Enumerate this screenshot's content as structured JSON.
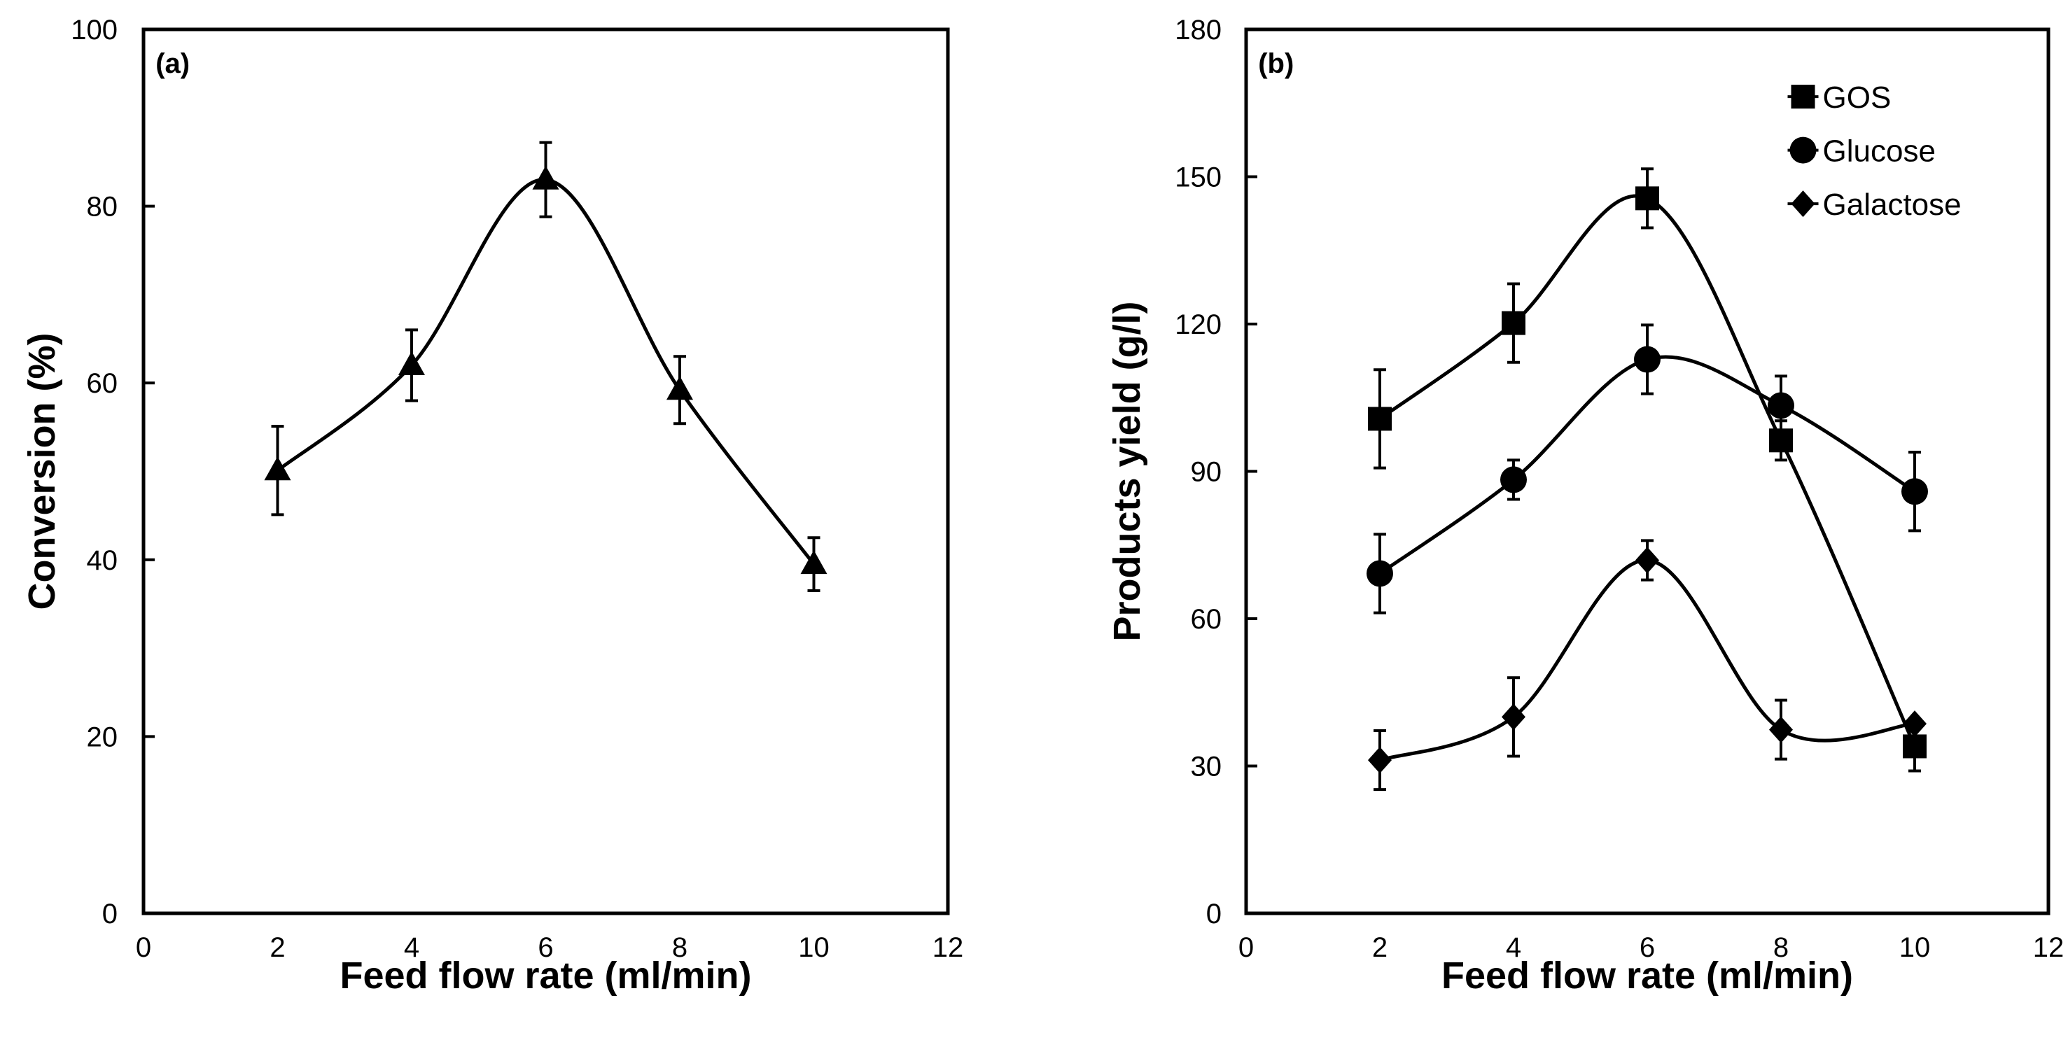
{
  "chart_data": [
    {
      "type": "line",
      "panel_label": "(a)",
      "xlabel": "Feed flow rate (ml/min)",
      "ylabel": "Conversion (%)",
      "xlim": [
        0,
        12
      ],
      "ylim": [
        0,
        100
      ],
      "xticks": [
        0,
        2,
        4,
        6,
        8,
        10,
        12
      ],
      "yticks": [
        0,
        20,
        40,
        60,
        80,
        100
      ],
      "grid": false,
      "x": [
        2,
        4,
        6,
        8,
        10
      ],
      "series": [
        {
          "name": "Conversion",
          "marker": "triangle",
          "values": [
            50.1,
            62.0,
            83.0,
            59.2,
            39.5
          ],
          "errors": [
            5.0,
            4.0,
            4.2,
            3.8,
            3.0
          ]
        }
      ]
    },
    {
      "type": "line",
      "panel_label": "(b)",
      "xlabel": "Feed flow rate (ml/min)",
      "ylabel": "Products yield (g/l)",
      "xlim": [
        0,
        12
      ],
      "ylim": [
        0,
        180
      ],
      "xticks": [
        0,
        2,
        4,
        6,
        8,
        10,
        12
      ],
      "yticks": [
        0,
        30,
        60,
        90,
        120,
        150,
        180
      ],
      "grid": false,
      "legend_position": "top-right",
      "x": [
        2,
        4,
        6,
        8,
        10
      ],
      "series": [
        {
          "name": "GOS",
          "marker": "square",
          "values": [
            100.7,
            120.2,
            145.6,
            96.3,
            34.0
          ],
          "errors": [
            10.0,
            8.0,
            6.0,
            4.0,
            5.0
          ]
        },
        {
          "name": "Glucose",
          "marker": "circle",
          "values": [
            69.2,
            88.3,
            112.8,
            103.4,
            85.9
          ],
          "errors": [
            8.0,
            4.0,
            7.0,
            6.0,
            8.0
          ]
        },
        {
          "name": "Galactose",
          "marker": "diamond",
          "values": [
            31.2,
            40.0,
            71.9,
            37.4,
            38.6
          ],
          "errors": [
            6.0,
            8.0,
            4.0,
            6.0,
            1.0
          ]
        }
      ]
    }
  ]
}
